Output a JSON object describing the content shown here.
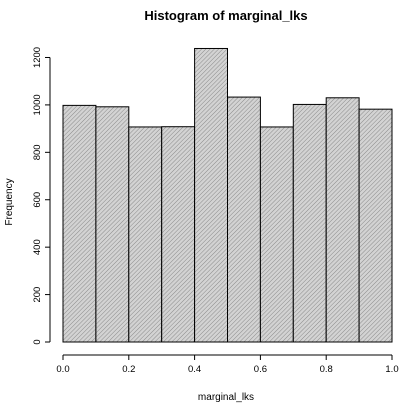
{
  "chart_data": {
    "type": "bar",
    "title": "Histogram of marginal_lks",
    "xlabel": "marginal_lks",
    "ylabel": "Frequency",
    "bins": [
      {
        "x0": 0.0,
        "x1": 0.1,
        "count": 998
      },
      {
        "x0": 0.1,
        "x1": 0.2,
        "count": 992
      },
      {
        "x0": 0.2,
        "x1": 0.3,
        "count": 907
      },
      {
        "x0": 0.3,
        "x1": 0.4,
        "count": 908
      },
      {
        "x0": 0.4,
        "x1": 0.5,
        "count": 1238
      },
      {
        "x0": 0.5,
        "x1": 0.6,
        "count": 1033
      },
      {
        "x0": 0.6,
        "x1": 0.7,
        "count": 907
      },
      {
        "x0": 0.7,
        "x1": 0.8,
        "count": 1002
      },
      {
        "x0": 0.8,
        "x1": 0.9,
        "count": 1030
      },
      {
        "x0": 0.9,
        "x1": 1.0,
        "count": 982
      }
    ],
    "xlim": [
      0.0,
      1.0
    ],
    "ylim": [
      0,
      1240
    ],
    "xticks": [
      "0.0",
      "0.2",
      "0.4",
      "0.6",
      "0.8",
      "1.0"
    ],
    "yticks": [
      "0",
      "200",
      "400",
      "600",
      "800",
      "1000",
      "1200"
    ],
    "grid": false
  },
  "colors": {
    "bar_fill": "#d3d3d3",
    "hatch": "#8a8a8a",
    "outline": "#000000"
  }
}
